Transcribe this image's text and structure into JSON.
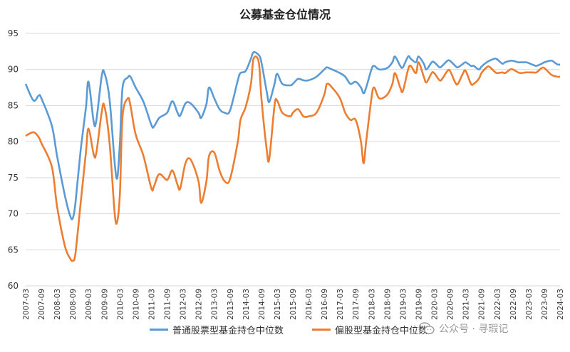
{
  "chart_data": {
    "type": "line",
    "title": "公募基金仓位情况",
    "ylim": [
      60,
      95
    ],
    "yticks": [
      60,
      65,
      70,
      75,
      80,
      85,
      90,
      95
    ],
    "xlim": [
      "2007-03",
      "2024-03"
    ],
    "xtick_labels": [
      "2007-03",
      "2007-09",
      "2008-03",
      "2008-09",
      "2009-03",
      "2009-09",
      "2010-03",
      "2010-09",
      "2011-03",
      "2011-09",
      "2012-03",
      "2012-09",
      "2013-03",
      "2013-09",
      "2014-03",
      "2014-09",
      "2015-03",
      "2015-09",
      "2016-03",
      "2016-09",
      "2017-03",
      "2017-09",
      "2018-03",
      "2018-09",
      "2019-03",
      "2019-09",
      "2020-03",
      "2020-09",
      "2021-03",
      "2021-09",
      "2022-03",
      "2022-09",
      "2023-03",
      "2023-09",
      "2024-03"
    ],
    "grid": "horizontal",
    "legend_position": "bottom",
    "series": [
      {
        "name": "普通股票型基金持仓中位数",
        "color": "#5b9bd5",
        "points": [
          [
            "2007-03",
            88.0
          ],
          [
            "2007-06",
            85.7
          ],
          [
            "2007-08",
            86.4
          ],
          [
            "2007-09",
            86.0
          ],
          [
            "2008-01",
            82.2
          ],
          [
            "2008-03",
            78.0
          ],
          [
            "2008-06",
            72.5
          ],
          [
            "2008-08",
            69.7
          ],
          [
            "2008-09",
            69.4
          ],
          [
            "2008-10",
            71.5
          ],
          [
            "2008-12",
            78.8
          ],
          [
            "2009-02",
            84.7
          ],
          [
            "2009-03",
            88.3
          ],
          [
            "2009-05",
            82.7
          ],
          [
            "2009-06",
            83.0
          ],
          [
            "2009-08",
            89.0
          ],
          [
            "2009-09",
            89.6
          ],
          [
            "2009-11",
            86.0
          ],
          [
            "2010-01",
            77.0
          ],
          [
            "2010-02",
            75.0
          ],
          [
            "2010-03",
            80.0
          ],
          [
            "2010-04",
            87.5
          ],
          [
            "2010-06",
            88.9
          ],
          [
            "2010-07",
            89.0
          ],
          [
            "2010-09",
            87.5
          ],
          [
            "2010-12",
            85.5
          ],
          [
            "2011-03",
            82.3
          ],
          [
            "2011-04",
            82.1
          ],
          [
            "2011-06",
            83.3
          ],
          [
            "2011-09",
            84.0
          ],
          [
            "2011-11",
            85.6
          ],
          [
            "2012-01",
            84.0
          ],
          [
            "2012-02",
            83.6
          ],
          [
            "2012-04",
            85.3
          ],
          [
            "2012-06",
            85.3
          ],
          [
            "2012-09",
            84.0
          ],
          [
            "2012-10",
            83.3
          ],
          [
            "2012-12",
            85.2
          ],
          [
            "2013-01",
            87.5
          ],
          [
            "2013-03",
            86.0
          ],
          [
            "2013-05",
            84.5
          ],
          [
            "2013-07",
            84.0
          ],
          [
            "2013-09",
            84.3
          ],
          [
            "2013-12",
            88.5
          ],
          [
            "2014-01",
            89.5
          ],
          [
            "2014-03",
            89.8
          ],
          [
            "2014-05",
            91.5
          ],
          [
            "2014-06",
            92.4
          ],
          [
            "2014-08",
            92.0
          ],
          [
            "2014-09",
            91.0
          ],
          [
            "2014-11",
            87.0
          ],
          [
            "2014-12",
            85.5
          ],
          [
            "2015-02",
            88.0
          ],
          [
            "2015-03",
            89.4
          ],
          [
            "2015-05",
            88.0
          ],
          [
            "2015-08",
            87.8
          ],
          [
            "2015-09",
            88.0
          ],
          [
            "2015-11",
            88.7
          ],
          [
            "2016-01",
            88.5
          ],
          [
            "2016-03",
            88.5
          ],
          [
            "2016-06",
            89.0
          ],
          [
            "2016-09",
            90.0
          ],
          [
            "2016-10",
            90.3
          ],
          [
            "2016-12",
            90.0
          ],
          [
            "2017-03",
            89.5
          ],
          [
            "2017-05",
            89.0
          ],
          [
            "2017-07",
            88.0
          ],
          [
            "2017-09",
            88.3
          ],
          [
            "2017-11",
            87.5
          ],
          [
            "2017-12",
            86.7
          ],
          [
            "2018-01",
            87.5
          ],
          [
            "2018-03",
            90.0
          ],
          [
            "2018-04",
            90.5
          ],
          [
            "2018-06",
            90.0
          ],
          [
            "2018-09",
            90.2
          ],
          [
            "2018-11",
            91.0
          ],
          [
            "2018-12",
            91.8
          ],
          [
            "2019-02",
            90.5
          ],
          [
            "2019-03",
            90.3
          ],
          [
            "2019-05",
            91.8
          ],
          [
            "2019-06",
            91.5
          ],
          [
            "2019-08",
            91.0
          ],
          [
            "2019-09",
            91.8
          ],
          [
            "2019-11",
            90.8
          ],
          [
            "2019-12",
            90.0
          ],
          [
            "2020-02",
            91.0
          ],
          [
            "2020-03",
            91.0
          ],
          [
            "2020-05",
            90.3
          ],
          [
            "2020-06",
            90.5
          ],
          [
            "2020-08",
            91.2
          ],
          [
            "2020-09",
            91.2
          ],
          [
            "2020-11",
            90.5
          ],
          [
            "2020-12",
            90.3
          ],
          [
            "2021-02",
            90.8
          ],
          [
            "2021-03",
            91.0
          ],
          [
            "2021-05",
            90.5
          ],
          [
            "2021-06",
            90.5
          ],
          [
            "2021-08",
            90.0
          ],
          [
            "2021-09",
            90.4
          ],
          [
            "2021-11",
            91.0
          ],
          [
            "2021-12",
            91.2
          ],
          [
            "2022-02",
            91.5
          ],
          [
            "2022-03",
            91.4
          ],
          [
            "2022-05",
            90.8
          ],
          [
            "2022-06",
            91.0
          ],
          [
            "2022-08",
            91.2
          ],
          [
            "2022-09",
            91.2
          ],
          [
            "2022-11",
            91.0
          ],
          [
            "2022-12",
            91.0
          ],
          [
            "2023-02",
            91.0
          ],
          [
            "2023-03",
            90.9
          ],
          [
            "2023-05",
            90.6
          ],
          [
            "2023-06",
            90.5
          ],
          [
            "2023-08",
            90.8
          ],
          [
            "2023-09",
            91.0
          ],
          [
            "2023-11",
            91.2
          ],
          [
            "2023-12",
            91.2
          ],
          [
            "2024-02",
            90.7
          ],
          [
            "2024-03",
            90.7
          ]
        ]
      },
      {
        "name": "偏股型基金持仓中位数",
        "color": "#ed7d31",
        "points": [
          [
            "2007-03",
            80.8
          ],
          [
            "2007-06",
            81.3
          ],
          [
            "2007-08",
            80.6
          ],
          [
            "2007-09",
            79.8
          ],
          [
            "2008-01",
            76.5
          ],
          [
            "2008-03",
            71.0
          ],
          [
            "2008-06",
            65.5
          ],
          [
            "2008-08",
            63.8
          ],
          [
            "2008-09",
            63.5
          ],
          [
            "2008-10",
            64.5
          ],
          [
            "2008-12",
            71.5
          ],
          [
            "2009-02",
            78.5
          ],
          [
            "2009-03",
            81.8
          ],
          [
            "2009-05",
            78.2
          ],
          [
            "2009-06",
            78.5
          ],
          [
            "2009-08",
            84.0
          ],
          [
            "2009-09",
            85.0
          ],
          [
            "2009-11",
            80.0
          ],
          [
            "2010-01",
            70.0
          ],
          [
            "2010-02",
            69.0
          ],
          [
            "2010-03",
            73.0
          ],
          [
            "2010-04",
            83.5
          ],
          [
            "2010-06",
            86.0
          ],
          [
            "2010-07",
            85.0
          ],
          [
            "2010-09",
            81.0
          ],
          [
            "2010-12",
            78.0
          ],
          [
            "2011-03",
            73.5
          ],
          [
            "2011-04",
            73.8
          ],
          [
            "2011-06",
            75.5
          ],
          [
            "2011-09",
            74.7
          ],
          [
            "2011-11",
            76.0
          ],
          [
            "2012-01",
            74.0
          ],
          [
            "2012-02",
            73.5
          ],
          [
            "2012-04",
            77.0
          ],
          [
            "2012-06",
            77.5
          ],
          [
            "2012-09",
            74.5
          ],
          [
            "2012-10",
            71.5
          ],
          [
            "2012-12",
            74.5
          ],
          [
            "2013-01",
            78.0
          ],
          [
            "2013-03",
            78.5
          ],
          [
            "2013-05",
            76.0
          ],
          [
            "2013-07",
            74.5
          ],
          [
            "2013-09",
            74.8
          ],
          [
            "2013-12",
            80.0
          ],
          [
            "2014-01",
            83.0
          ],
          [
            "2014-03",
            84.8
          ],
          [
            "2014-05",
            88.0
          ],
          [
            "2014-06",
            91.5
          ],
          [
            "2014-08",
            91.0
          ],
          [
            "2014-09",
            86.0
          ],
          [
            "2014-11",
            79.0
          ],
          [
            "2014-12",
            77.6
          ],
          [
            "2015-02",
            85.0
          ],
          [
            "2015-03",
            85.7
          ],
          [
            "2015-05",
            84.0
          ],
          [
            "2015-08",
            83.5
          ],
          [
            "2015-09",
            84.0
          ],
          [
            "2015-11",
            84.5
          ],
          [
            "2016-01",
            83.5
          ],
          [
            "2016-03",
            83.5
          ],
          [
            "2016-06",
            84.0
          ],
          [
            "2016-09",
            86.5
          ],
          [
            "2016-10",
            88.0
          ],
          [
            "2016-12",
            87.5
          ],
          [
            "2017-03",
            86.0
          ],
          [
            "2017-05",
            84.0
          ],
          [
            "2017-07",
            83.0
          ],
          [
            "2017-09",
            83.0
          ],
          [
            "2017-11",
            80.0
          ],
          [
            "2017-12",
            77.0
          ],
          [
            "2018-01",
            80.0
          ],
          [
            "2018-03",
            86.0
          ],
          [
            "2018-04",
            87.5
          ],
          [
            "2018-06",
            86.0
          ],
          [
            "2018-09",
            86.5
          ],
          [
            "2018-11",
            88.0
          ],
          [
            "2018-12",
            89.5
          ],
          [
            "2019-02",
            87.5
          ],
          [
            "2019-03",
            87.0
          ],
          [
            "2019-05",
            90.0
          ],
          [
            "2019-06",
            90.5
          ],
          [
            "2019-08",
            89.5
          ],
          [
            "2019-09",
            91.0
          ],
          [
            "2019-11",
            89.0
          ],
          [
            "2019-12",
            88.2
          ],
          [
            "2020-02",
            89.5
          ],
          [
            "2020-03",
            89.5
          ],
          [
            "2020-05",
            88.5
          ],
          [
            "2020-06",
            88.7
          ],
          [
            "2020-08",
            89.8
          ],
          [
            "2020-09",
            89.8
          ],
          [
            "2020-11",
            88.2
          ],
          [
            "2020-12",
            88.0
          ],
          [
            "2021-02",
            89.5
          ],
          [
            "2021-03",
            89.8
          ],
          [
            "2021-05",
            88.0
          ],
          [
            "2021-06",
            88.0
          ],
          [
            "2021-08",
            88.7
          ],
          [
            "2021-09",
            89.5
          ],
          [
            "2021-11",
            90.3
          ],
          [
            "2021-12",
            90.4
          ],
          [
            "2022-02",
            89.7
          ],
          [
            "2022-03",
            89.5
          ],
          [
            "2022-05",
            89.6
          ],
          [
            "2022-06",
            89.5
          ],
          [
            "2022-08",
            90.0
          ],
          [
            "2022-09",
            90.0
          ],
          [
            "2022-11",
            89.6
          ],
          [
            "2022-12",
            89.5
          ],
          [
            "2023-02",
            89.6
          ],
          [
            "2023-03",
            89.6
          ],
          [
            "2023-05",
            89.6
          ],
          [
            "2023-06",
            89.6
          ],
          [
            "2023-08",
            90.2
          ],
          [
            "2023-09",
            90.2
          ],
          [
            "2023-11",
            89.5
          ],
          [
            "2023-12",
            89.2
          ],
          [
            "2024-02",
            89.0
          ],
          [
            "2024-03",
            89.0
          ]
        ]
      }
    ]
  },
  "watermark": {
    "icon": "wechat-icon",
    "text": "公众号 · 寻瑕记"
  }
}
